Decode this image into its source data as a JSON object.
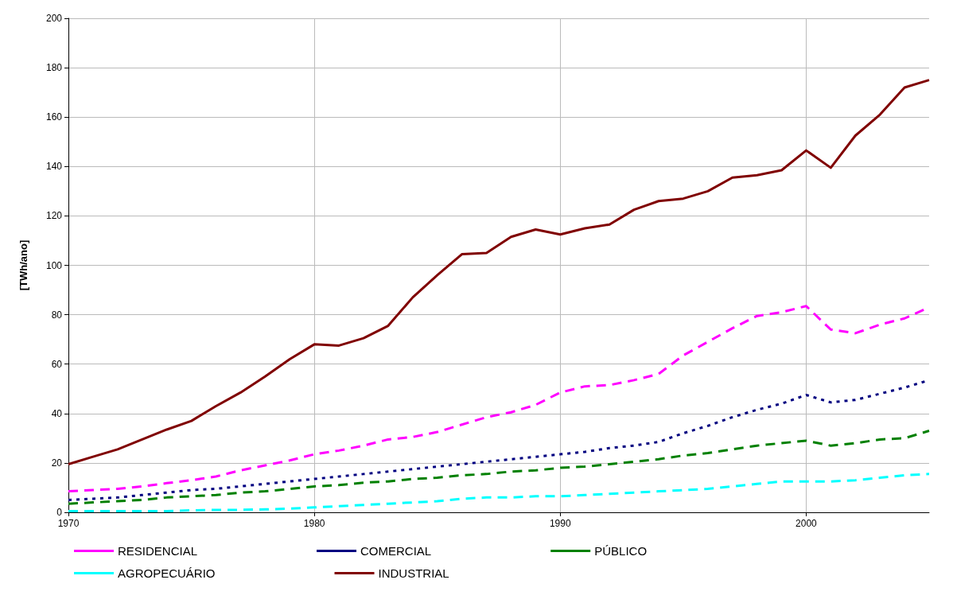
{
  "chart_data": {
    "type": "line",
    "ylabel": "[TWh/ano]",
    "x": [
      1970,
      1971,
      1972,
      1973,
      1974,
      1975,
      1976,
      1977,
      1978,
      1979,
      1980,
      1981,
      1982,
      1983,
      1984,
      1985,
      1986,
      1987,
      1988,
      1989,
      1990,
      1991,
      1992,
      1993,
      1994,
      1995,
      1996,
      1997,
      1998,
      1999,
      2000,
      2001,
      2002,
      2003,
      2004,
      2005
    ],
    "series": [
      {
        "name": "RESIDENCIAL",
        "color": "#ff00ff",
        "line_style": "dashed",
        "values": [
          8.5,
          9,
          9.5,
          10.5,
          11.8,
          13,
          14.5,
          17,
          19,
          21,
          23.5,
          25,
          27,
          29.5,
          30.5,
          32.5,
          35.5,
          38.5,
          40.5,
          43.5,
          48.5,
          51,
          51.5,
          53.5,
          56,
          63.5,
          69,
          74.5,
          79.5,
          81,
          83.5,
          74,
          72.5,
          76,
          78.5,
          83
        ]
      },
      {
        "name": "COMERCIAL",
        "color": "#000080",
        "line_style": "dotted",
        "values": [
          5,
          5.5,
          6,
          7,
          8,
          9,
          9.5,
          10.5,
          11.5,
          12.5,
          13.5,
          14.5,
          15.5,
          16.5,
          17.5,
          18.5,
          19.5,
          20.5,
          21.5,
          22.5,
          23.5,
          24.5,
          26,
          27,
          28.5,
          32,
          35,
          38.5,
          41.5,
          44,
          47.5,
          44.5,
          45.5,
          48,
          50.5,
          53.5
        ]
      },
      {
        "name": "PÚBLICO",
        "color": "#008000",
        "line_style": "dashed",
        "values": [
          3.5,
          4,
          4.5,
          5,
          6,
          6.5,
          7,
          8,
          8.5,
          9.5,
          10.5,
          11,
          12,
          12.5,
          13.5,
          14,
          15,
          15.5,
          16.5,
          17,
          18,
          18.5,
          19.5,
          20.5,
          21.5,
          23,
          24,
          25.5,
          27,
          28,
          29,
          27,
          28,
          29.5,
          30,
          33
        ]
      },
      {
        "name": "AGROPECUÁRIO",
        "color": "#00ffff",
        "line_style": "dashed",
        "values": [
          0.5,
          0.5,
          0.5,
          0.5,
          0.5,
          0.8,
          1,
          1,
          1.2,
          1.5,
          2,
          2.5,
          3,
          3.5,
          4,
          4.5,
          5.5,
          6,
          6,
          6.5,
          6.5,
          7,
          7.5,
          8,
          8.5,
          9,
          9.5,
          10.5,
          11.5,
          12.5,
          12.5,
          12.5,
          13,
          14,
          15,
          15.5
        ]
      },
      {
        "name": "INDUSTRIAL",
        "color": "#800000",
        "line_style": "solid",
        "values": [
          19.5,
          22.5,
          25.5,
          29.5,
          33.5,
          37,
          43,
          48.5,
          55,
          62,
          68,
          67.5,
          70.5,
          75.5,
          87,
          96,
          104.5,
          105,
          111.5,
          114.5,
          112.5,
          115,
          116.5,
          122.5,
          126,
          127,
          130,
          135.5,
          136.5,
          138.5,
          146.5,
          139.5,
          152.5,
          161,
          172,
          175
        ]
      }
    ],
    "xlim": [
      1970,
      2005
    ],
    "xticks": [
      1970,
      1980,
      1990,
      2000
    ],
    "ylim": [
      0,
      200
    ],
    "yticks": [
      0,
      20,
      40,
      60,
      80,
      100,
      120,
      140,
      160,
      180,
      200
    ],
    "grid": true,
    "legend": "bottom",
    "marker": "none"
  }
}
